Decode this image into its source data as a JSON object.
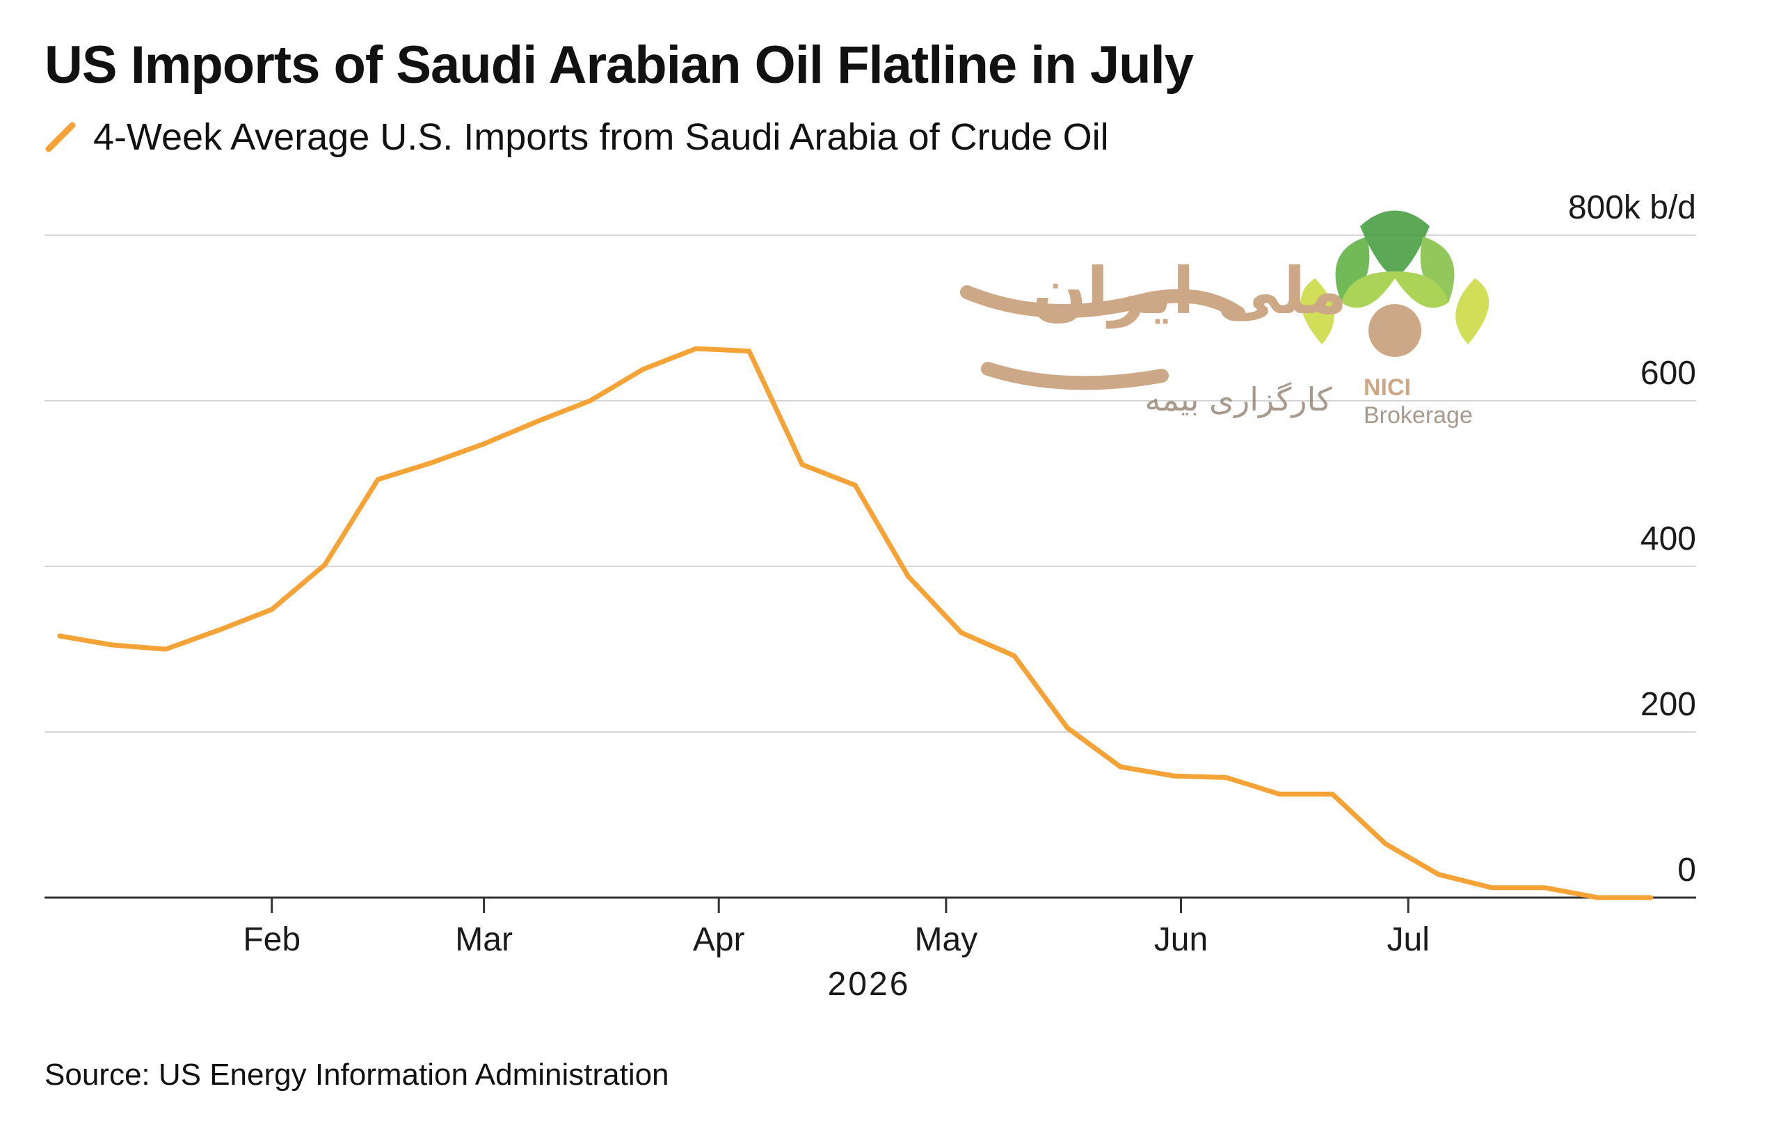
{
  "title": "US Imports of Saudi Arabian Oil Flatline in July",
  "source": "Source: US Energy Information Administration",
  "colors": {
    "series": "#f5a236",
    "grid": "#d6d6d6",
    "axis": "#333333",
    "text": "#1a1a1a"
  },
  "watermark": {
    "name": "NICI",
    "sub": "Brokerage",
    "persian_main": "ملی ایران",
    "persian_sub": "کارگزاری بیمه"
  },
  "chart_data": {
    "type": "line",
    "title": "US Imports of Saudi Arabian Oil Flatline in July",
    "xlabel": "2026",
    "ylabel": "",
    "unit": "k b/d",
    "ylim": [
      0,
      800
    ],
    "yticks": [
      0,
      200,
      400,
      600,
      800
    ],
    "ytick_labels": [
      "0",
      "200",
      "400",
      "600",
      "800k b/d"
    ],
    "y_axis_side": "right",
    "grid": true,
    "xlim": [
      "2026-01-02",
      "2026-08-08"
    ],
    "xticks": [
      {
        "label": "Feb",
        "date": "2026-02-01"
      },
      {
        "label": "Mar",
        "date": "2026-03-01"
      },
      {
        "label": "Apr",
        "date": "2026-04-01"
      },
      {
        "label": "May",
        "date": "2026-05-01"
      },
      {
        "label": "Jun",
        "date": "2026-06-01"
      },
      {
        "label": "Jul",
        "date": "2026-07-01"
      }
    ],
    "legend": "top-left",
    "series": [
      {
        "name": "4-Week Average U.S. Imports from Saudi Arabia of Crude Oil",
        "x": [
          "2026-01-04",
          "2026-01-11",
          "2026-01-18",
          "2026-01-25",
          "2026-02-01",
          "2026-02-08",
          "2026-02-15",
          "2026-02-22",
          "2026-03-01",
          "2026-03-08",
          "2026-03-15",
          "2026-03-22",
          "2026-03-29",
          "2026-04-05",
          "2026-04-12",
          "2026-04-19",
          "2026-04-26",
          "2026-05-03",
          "2026-05-10",
          "2026-05-17",
          "2026-05-24",
          "2026-05-31",
          "2026-06-07",
          "2026-06-14",
          "2026-06-21",
          "2026-06-28",
          "2026-07-05",
          "2026-07-12",
          "2026-07-19",
          "2026-07-26",
          "2026-08-02"
        ],
        "values": [
          316,
          305,
          300,
          323,
          348,
          402,
          505,
          525,
          548,
          575,
          600,
          638,
          663,
          660,
          523,
          498,
          388,
          320,
          292,
          205,
          158,
          147,
          145,
          125,
          125,
          65,
          28,
          12,
          12,
          0,
          0
        ]
      }
    ]
  }
}
